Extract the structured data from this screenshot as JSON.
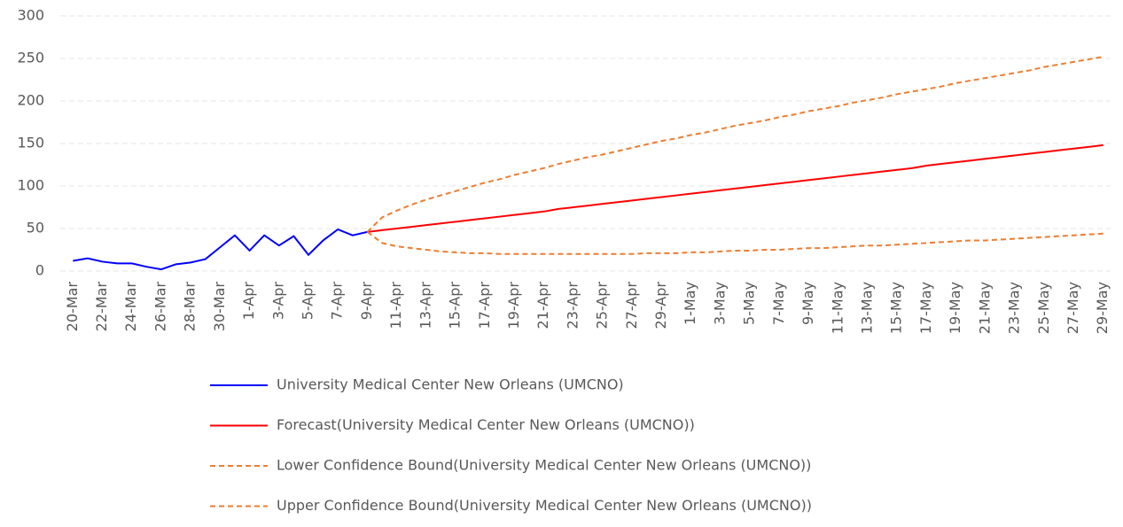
{
  "chart_data": {
    "type": "line",
    "categories": [
      "20-Mar",
      null,
      "22-Mar",
      null,
      "24-Mar",
      null,
      "26-Mar",
      null,
      "28-Mar",
      null,
      "30-Mar",
      null,
      "1-Apr",
      null,
      "3-Apr",
      null,
      "5-Apr",
      null,
      "7-Apr",
      null,
      "9-Apr",
      null,
      "11-Apr",
      null,
      "13-Apr",
      null,
      "15-Apr",
      null,
      "17-Apr",
      null,
      "19-Apr",
      null,
      "21-Apr",
      null,
      "23-Apr",
      null,
      "25-Apr",
      null,
      "27-Apr",
      null,
      "29-Apr",
      null,
      "1-May",
      null,
      "3-May",
      null,
      "5-May",
      null,
      "7-May",
      null,
      "9-May",
      null,
      "11-May",
      null,
      "13-May",
      null,
      "15-May",
      null,
      "17-May",
      null,
      "19-May",
      null,
      "21-May",
      null,
      "23-May",
      null,
      "25-May",
      null,
      "27-May",
      null,
      "29-May"
    ],
    "series": [
      {
        "name": "University Medical Center New Orleans (UMCNO)",
        "color": "#0000ff",
        "dashed": false,
        "values": [
          12,
          15,
          11,
          9,
          9,
          5,
          2,
          8,
          10,
          14,
          28,
          42,
          24,
          42,
          30,
          41,
          19,
          36,
          49,
          42,
          46,
          null,
          null,
          null,
          null,
          null,
          null,
          null,
          null,
          null,
          null,
          null,
          null,
          null,
          null,
          null,
          null,
          null,
          null,
          null,
          null,
          null,
          null,
          null,
          null,
          null,
          null,
          null,
          null,
          null,
          null,
          null,
          null,
          null,
          null,
          null,
          null,
          null,
          null,
          null,
          null,
          null,
          null,
          null,
          null,
          null,
          null,
          null,
          null,
          null,
          null
        ]
      },
      {
        "name": "Forecast(University Medical Center New Orleans (UMCNO))",
        "color": "#ff0000",
        "dashed": false,
        "values": [
          null,
          null,
          null,
          null,
          null,
          null,
          null,
          null,
          null,
          null,
          null,
          null,
          null,
          null,
          null,
          null,
          null,
          null,
          null,
          null,
          46,
          48,
          50,
          52,
          54,
          56,
          58,
          60,
          62,
          64,
          66,
          68,
          70,
          73,
          75,
          77,
          79,
          81,
          83,
          85,
          87,
          89,
          91,
          93,
          95,
          97,
          99,
          101,
          103,
          105,
          107,
          109,
          111,
          113,
          115,
          117,
          119,
          121,
          124,
          126,
          128,
          130,
          132,
          134,
          136,
          138,
          140,
          142,
          144,
          146,
          148
        ]
      },
      {
        "name": "Lower Confidence Bound(University Medical Center New Orleans (UMCNO))",
        "color": "#ed7d31",
        "dashed": true,
        "values": [
          null,
          null,
          null,
          null,
          null,
          null,
          null,
          null,
          null,
          null,
          null,
          null,
          null,
          null,
          null,
          null,
          null,
          null,
          null,
          null,
          46,
          33,
          29,
          27,
          25,
          23,
          22,
          21,
          21,
          20,
          20,
          20,
          20,
          20,
          20,
          20,
          20,
          20,
          20,
          21,
          21,
          21,
          22,
          22,
          23,
          24,
          24,
          25,
          25,
          26,
          27,
          27,
          28,
          29,
          30,
          30,
          31,
          32,
          33,
          34,
          35,
          36,
          36,
          37,
          38,
          39,
          40,
          41,
          42,
          43,
          44
        ]
      },
      {
        "name": "Upper Confidence Bound(University Medical Center New Orleans (UMCNO))",
        "color": "#ed7d31",
        "dashed": true,
        "values": [
          null,
          null,
          null,
          null,
          null,
          null,
          null,
          null,
          null,
          null,
          null,
          null,
          null,
          null,
          null,
          null,
          null,
          null,
          null,
          null,
          46,
          63,
          71,
          78,
          84,
          89,
          94,
          99,
          104,
          108,
          113,
          117,
          121,
          126,
          130,
          134,
          137,
          141,
          145,
          149,
          153,
          156,
          160,
          163,
          167,
          171,
          174,
          177,
          181,
          184,
          188,
          191,
          194,
          198,
          201,
          204,
          208,
          211,
          214,
          217,
          221,
          224,
          227,
          230,
          233,
          236,
          240,
          243,
          246,
          249,
          252
        ]
      }
    ],
    "ylim": [
      0,
      300
    ],
    "yticks": [
      0,
      50,
      100,
      150,
      200,
      250,
      300
    ],
    "grid": true
  }
}
